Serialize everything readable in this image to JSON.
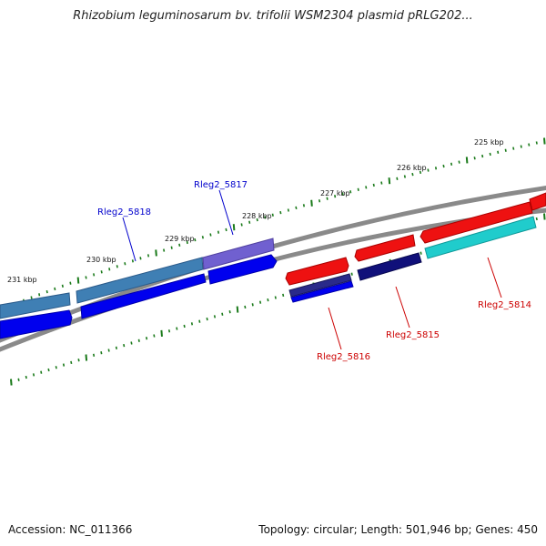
{
  "title": "Rhizobium leguminosarum bv. trifolii WSM2304 plasmid pRLG202...",
  "footer": {
    "accession": "Accession: NC_011366",
    "stats": "Topology: circular; Length: 501,946 bp; Genes: 450"
  },
  "colors": {
    "backbone": "#888888",
    "tick": "#1a7a1a",
    "forward_label": "#0000cc",
    "reverse_label": "#cc0000"
  },
  "scale_labels": [
    "225 kbp",
    "226 kbp",
    "227 kbp",
    "228 kbp",
    "229 kbp",
    "230 kbp",
    "231 kbp"
  ],
  "gene_labels": [
    {
      "text": "Rleg2_5818",
      "strand": "forward"
    },
    {
      "text": "Rleg2_5817",
      "strand": "forward"
    },
    {
      "text": "Rleg2_5816",
      "strand": "reverse"
    },
    {
      "text": "Rleg2_5815",
      "strand": "reverse"
    },
    {
      "text": "Rleg2_5814",
      "strand": "reverse"
    }
  ]
}
